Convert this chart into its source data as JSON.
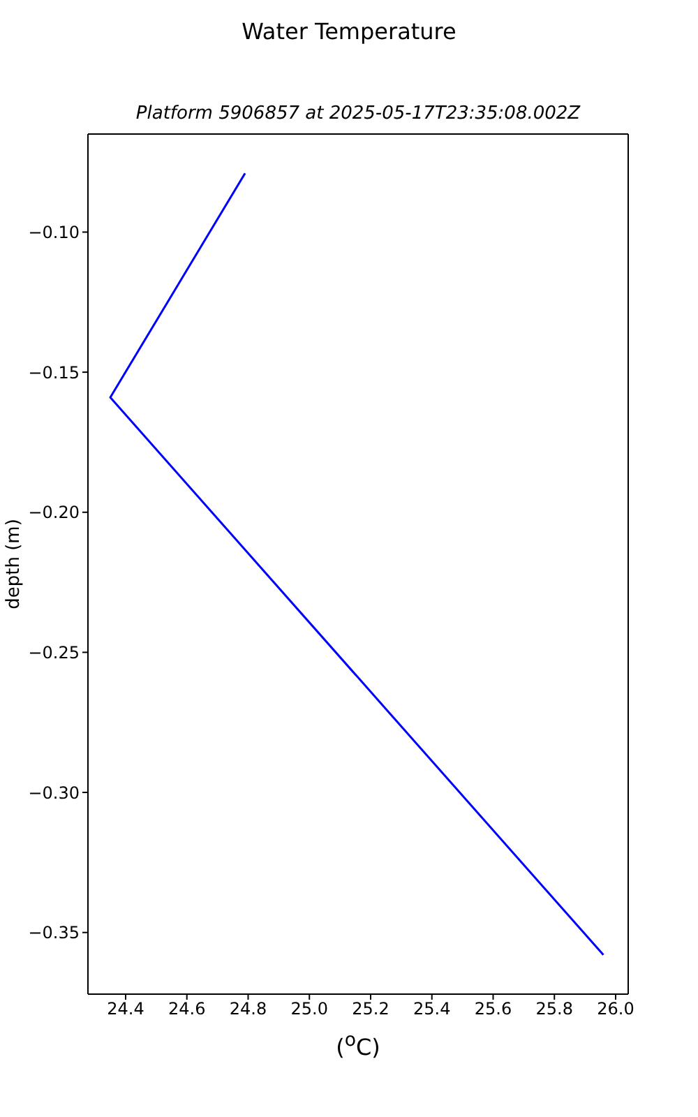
{
  "chart_data": {
    "type": "line",
    "title": "Water Temperature",
    "subtitle": "Platform 5906857 at 2025-05-17T23:35:08.002Z",
    "xlabel": "($^{o}$C)",
    "ylabel": "depth (m)",
    "series": [
      {
        "color": "#0000ff",
        "x": [
          24.79,
          24.35,
          25.96
        ],
        "values": [
          -0.079,
          -0.159,
          -0.358
        ]
      }
    ],
    "xlim": [
      24.277,
      26.041
    ],
    "xticks": [
      24.4,
      24.6,
      24.8,
      {
        "value": 25.0,
        "label": "25.0"
      },
      25.2,
      25.4,
      25.6,
      25.8,
      {
        "value": 26.0,
        "label": "26.0"
      }
    ],
    "ylim": [
      -0.372,
      -0.065
    ],
    "yticks": [
      {
        "value": -0.1,
        "label": "−0.10"
      },
      {
        "value": -0.15,
        "label": "−0.15"
      },
      {
        "value": -0.2,
        "label": "−0.20"
      },
      {
        "value": -0.25,
        "label": "−0.25"
      },
      {
        "value": -0.3,
        "label": "−0.30"
      },
      {
        "value": -0.35,
        "label": "−0.35"
      }
    ],
    "grid": false
  }
}
